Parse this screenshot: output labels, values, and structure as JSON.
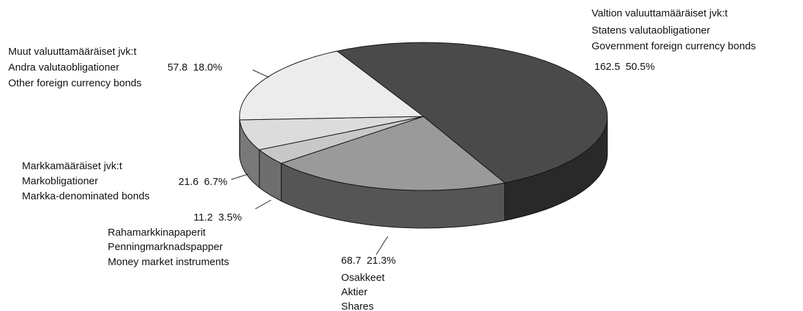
{
  "chart_data": {
    "type": "pie",
    "categories": [
      [
        "Valtion valuuttamääräiset jvk:t",
        "Statens valutaobligationer",
        "Government foreign currency bonds"
      ],
      [
        "Osakkeet",
        "Aktier",
        "Shares"
      ],
      [
        "Rahamarkkinapaperit",
        "Penningmarknadspapper",
        "Money market instruments"
      ],
      [
        "Markkamääräiset jvk:t",
        "Markobligationer",
        "Markka-denominated bonds"
      ],
      [
        "Muut valuuttamääräiset jvk:t",
        "Andra valutaobligationer",
        "Other foreign currency bonds"
      ]
    ],
    "values": [
      162.5,
      68.7,
      11.2,
      21.6,
      57.8
    ],
    "shares": [
      50.5,
      21.3,
      3.5,
      6.7,
      18.0
    ],
    "share_labels": [
      "50.5%",
      "21.3%",
      "3.5%",
      "6.7%",
      "18.0%"
    ],
    "colors": [
      "#4a4a4a",
      "#9a9a9a",
      "#c8c8c8",
      "#dcdcdc",
      "#ececec"
    ]
  }
}
